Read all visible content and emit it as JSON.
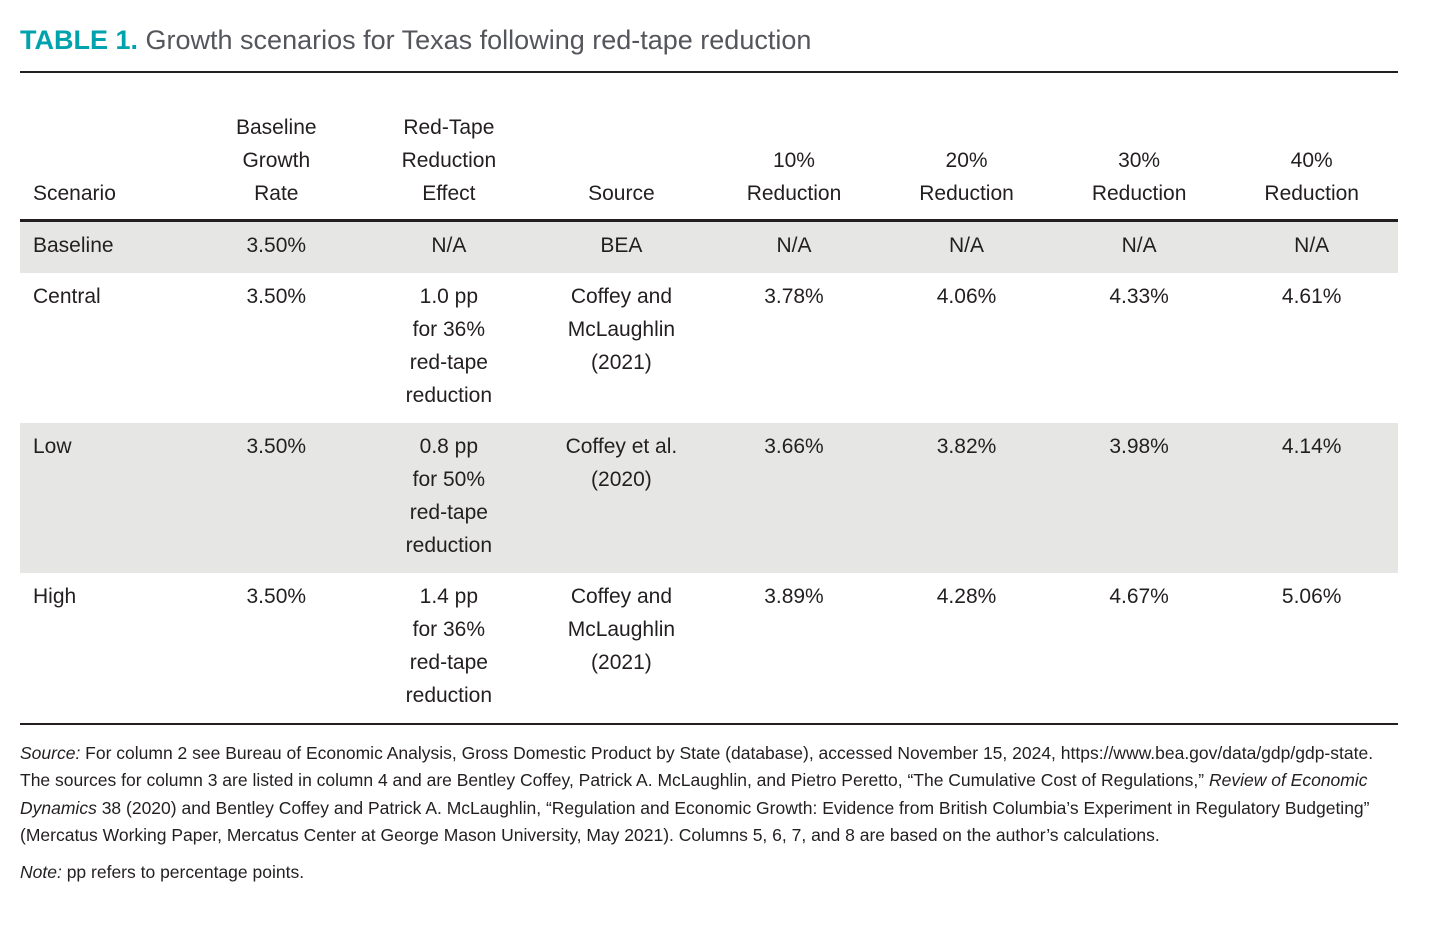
{
  "title": {
    "label": "TABLE 1.",
    "text": "Growth scenarios for Texas following red-tape reduction"
  },
  "colors": {
    "accent_teal": "#00a3ad",
    "title_gray": "#54565b",
    "text": "#231f20",
    "row_shade": "#e6e6e5",
    "rule": "#231f20"
  },
  "table": {
    "headers": [
      "Scenario",
      "Baseline\nGrowth\nRate",
      "Red-Tape\nReduction\nEffect",
      "Source",
      "10%\nReduction",
      "20%\nReduction",
      "30%\nReduction",
      "40%\nReduction"
    ],
    "rows": [
      {
        "shaded": true,
        "cells": [
          "Baseline",
          "3.50%",
          "N/A",
          "BEA",
          "N/A",
          "N/A",
          "N/A",
          "N/A"
        ]
      },
      {
        "shaded": false,
        "cells": [
          "Central",
          "3.50%",
          "1.0 pp\nfor 36%\nred-tape\nreduction",
          "Coffey and\nMcLaughlin\n(2021)",
          "3.78%",
          "4.06%",
          "4.33%",
          "4.61%"
        ]
      },
      {
        "shaded": true,
        "cells": [
          "Low",
          "3.50%",
          "0.8 pp\nfor 50%\nred-tape\nreduction",
          "Coffey et al.\n(2020)",
          "3.66%",
          "3.82%",
          "3.98%",
          "4.14%"
        ]
      },
      {
        "shaded": false,
        "cells": [
          "High",
          "3.50%",
          "1.4 pp\nfor 36%\nred-tape\nreduction",
          "Coffey and\nMcLaughlin\n(2021)",
          "3.89%",
          "4.28%",
          "4.67%",
          "5.06%"
        ]
      }
    ]
  },
  "chart_data": {
    "type": "table",
    "title": "TABLE 1. Growth scenarios for Texas following red-tape reduction",
    "columns": [
      "Scenario",
      "Baseline Growth Rate",
      "Red-Tape Reduction Effect",
      "Source",
      "10% Reduction",
      "20% Reduction",
      "30% Reduction",
      "40% Reduction"
    ],
    "rows": [
      [
        "Baseline",
        "3.50%",
        "N/A",
        "BEA",
        "N/A",
        "N/A",
        "N/A",
        "N/A"
      ],
      [
        "Central",
        "3.50%",
        "1.0 pp for 36% red-tape reduction",
        "Coffey and McLaughlin (2021)",
        "3.78%",
        "4.06%",
        "4.33%",
        "4.61%"
      ],
      [
        "Low",
        "3.50%",
        "0.8 pp for 50% red-tape reduction",
        "Coffey et al. (2020)",
        "3.66%",
        "3.82%",
        "3.98%",
        "4.14%"
      ],
      [
        "High",
        "3.50%",
        "1.4 pp for 36% red-tape reduction",
        "Coffey and McLaughlin (2021)",
        "3.89%",
        "4.28%",
        "4.67%",
        "5.06%"
      ]
    ]
  },
  "footnotes": {
    "source": {
      "label": "Source:",
      "part1": " For column 2 see Bureau of Economic Analysis, Gross Domestic Product by State (database), accessed November 15, 2024, https://www.bea.gov/data/gdp/gdp-state. The sources for column 3 are listed in column 4 and are Bentley Coffey, Patrick A. McLaughlin, and Pietro Peretto, “The Cumulative Cost of Regulations,” ",
      "journal": "Review of Economic Dynamics",
      "part2": " 38 (2020) and Bentley Coffey and Patrick A. McLaughlin, “Regulation and Economic Growth: Evidence from British Columbia’s Experiment in Regulatory Budgeting” (Mercatus Working Paper, Mercatus Center at George Mason University, May 2021). Columns 5, 6, 7, and 8 are based on the author’s calculations."
    },
    "note": {
      "label": "Note:",
      "text": " pp refers to percentage points."
    }
  }
}
